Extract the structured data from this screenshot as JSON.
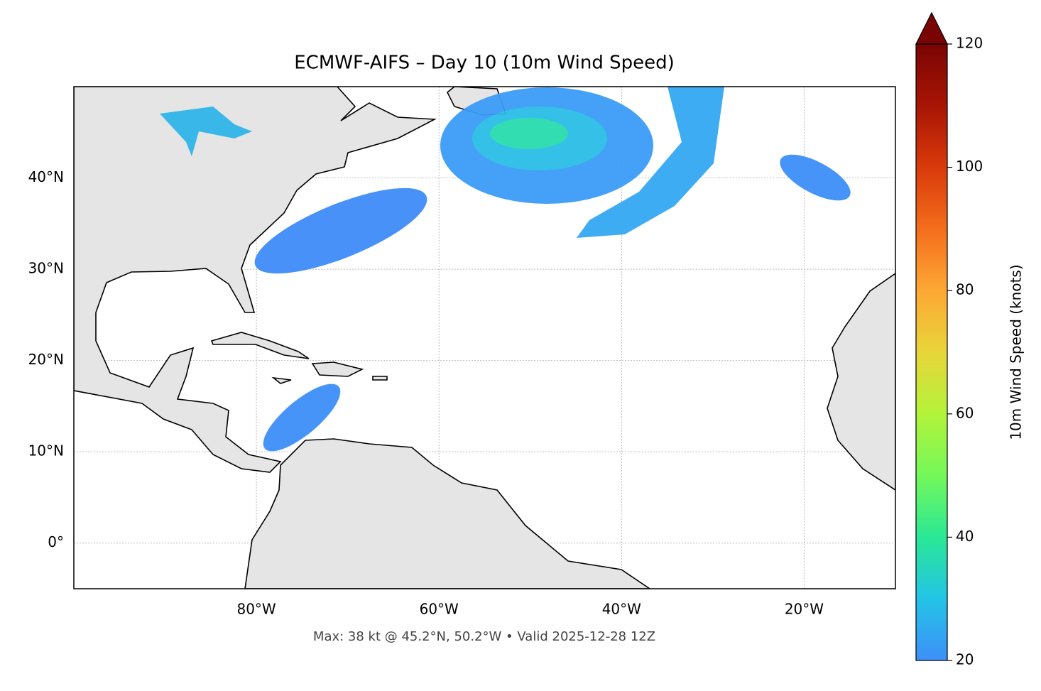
{
  "chart_data": {
    "type": "map",
    "title": "ECMWF-AIFS – Day 10 (10m Wind Speed)",
    "footer": "Max: 38 kt @ 45.2°N, 50.2°W • Valid 2025-12-28 12Z",
    "xlim": [
      -100,
      -10
    ],
    "ylim": [
      -5,
      50
    ],
    "xticks": [
      {
        "value": -80,
        "label": "80°W"
      },
      {
        "value": -60,
        "label": "60°W"
      },
      {
        "value": -40,
        "label": "40°W"
      },
      {
        "value": -20,
        "label": "20°W"
      }
    ],
    "yticks": [
      {
        "value": 40,
        "label": "40°N"
      },
      {
        "value": 30,
        "label": "30°N"
      },
      {
        "value": 20,
        "label": "20°N"
      },
      {
        "value": 10,
        "label": "10°N"
      },
      {
        "value": 0,
        "label": "0°"
      }
    ],
    "grid": true,
    "colorbar": {
      "label": "10m Wind Speed (knots)",
      "lim": [
        20,
        120
      ],
      "ticks": [
        20,
        40,
        60,
        80,
        100,
        120
      ],
      "extend": "max",
      "colors": [
        "#3e8ff8",
        "#23c4e6",
        "#2ae895",
        "#74f85a",
        "#b3f33a",
        "#e8d53a",
        "#fda834",
        "#f46d1c",
        "#d93a0b",
        "#a81505",
        "#7a0403"
      ]
    }
  }
}
